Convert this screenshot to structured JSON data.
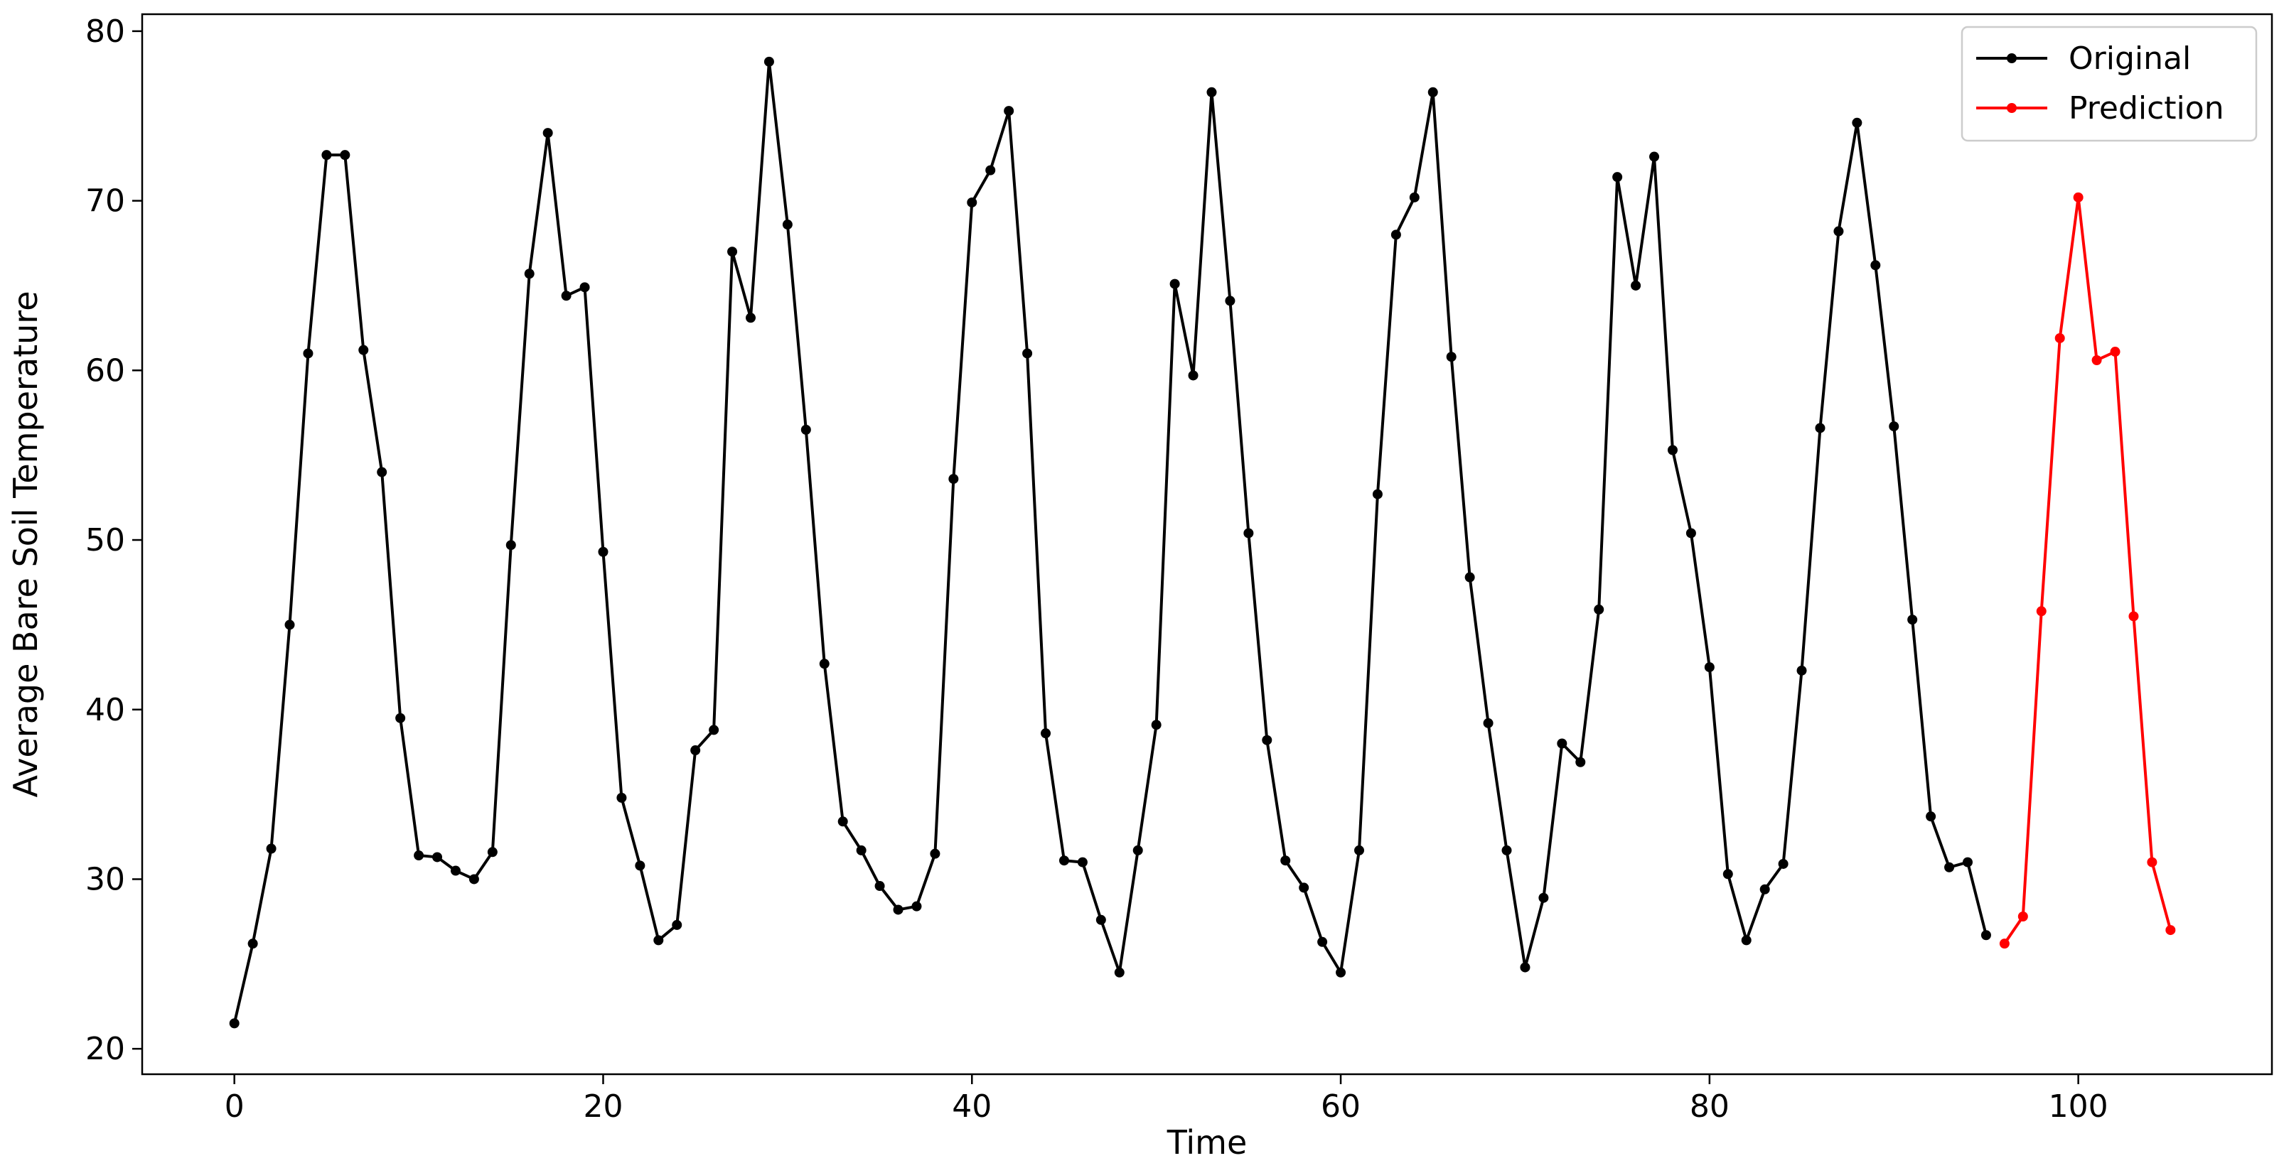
{
  "chart_data": {
    "type": "line",
    "xlabel": "Time",
    "ylabel": "Average Bare Soil Temperature",
    "xlim": [
      -5,
      110.5
    ],
    "ylim": [
      18.5,
      81
    ],
    "xticks": [
      0,
      20,
      40,
      60,
      80,
      100
    ],
    "yticks": [
      20,
      30,
      40,
      50,
      60,
      70,
      80
    ],
    "grid": false,
    "legend_position": "top-right",
    "series": [
      {
        "name": "Original",
        "color": "#000000",
        "marker": "circle",
        "x_start": 0,
        "values": [
          21.5,
          26.2,
          31.8,
          45.0,
          61.0,
          72.7,
          72.7,
          61.2,
          54.0,
          39.5,
          31.4,
          31.3,
          30.5,
          30.0,
          31.6,
          49.7,
          65.7,
          74.0,
          64.4,
          64.9,
          49.3,
          34.8,
          30.8,
          26.4,
          27.3,
          37.6,
          38.8,
          67.0,
          63.1,
          78.2,
          68.6,
          56.5,
          42.7,
          33.4,
          31.7,
          29.6,
          28.2,
          28.4,
          31.5,
          53.6,
          69.9,
          71.8,
          75.3,
          61.0,
          38.6,
          31.1,
          31.0,
          27.6,
          24.5,
          31.7,
          39.1,
          65.1,
          59.7,
          76.4,
          64.1,
          50.4,
          38.2,
          31.1,
          29.5,
          26.3,
          24.5,
          31.7,
          52.7,
          68.0,
          70.2,
          76.4,
          60.8,
          47.8,
          39.2,
          31.7,
          24.8,
          28.9,
          38.0,
          36.9,
          45.9,
          71.4,
          65.0,
          72.6,
          55.3,
          50.4,
          42.5,
          30.3,
          26.4,
          29.4,
          30.9,
          42.3,
          56.6,
          68.2,
          74.6,
          66.2,
          56.7,
          45.3,
          33.7,
          30.7,
          31.0,
          26.7
        ]
      },
      {
        "name": "Prediction",
        "color": "#ff0000",
        "marker": "circle",
        "x_start": 96,
        "values": [
          26.2,
          27.8,
          45.8,
          61.9,
          70.2,
          60.6,
          61.1,
          45.5,
          31.0,
          27.0
        ]
      }
    ]
  }
}
